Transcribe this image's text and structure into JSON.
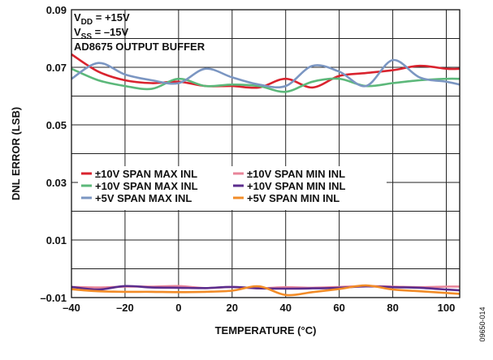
{
  "chart_data": {
    "type": "line",
    "xlabel": "TEMPERATURE (°C)",
    "ylabel": "DNL ERROR (LSB)",
    "xlim": [
      -40,
      105
    ],
    "ylim": [
      -0.01,
      0.09
    ],
    "x_ticks": [
      -40,
      -20,
      0,
      20,
      40,
      60,
      80,
      100
    ],
    "x_tick_labels": [
      "–40",
      "–20",
      "0",
      "20",
      "40",
      "60",
      "80",
      "100"
    ],
    "y_ticks": [
      -0.01,
      0.01,
      0.03,
      0.05,
      0.07,
      0.09
    ],
    "y_tick_labels": [
      "–0.01",
      "0.01",
      "0.03",
      "0.05",
      "0.07",
      "0.09"
    ],
    "grid": true,
    "conditions": [
      {
        "main": "V",
        "sub": "DD",
        "rest": " = +15V"
      },
      {
        "main": "V",
        "sub": "SS",
        "rest": " = –15V"
      },
      {
        "main": "AD8675 OUTPUT BUFFER",
        "sub": "",
        "rest": ""
      }
    ],
    "figure_id": "09650-014",
    "x": [
      -40,
      -30,
      -20,
      -10,
      0,
      10,
      20,
      30,
      40,
      50,
      60,
      70,
      80,
      90,
      100,
      105
    ],
    "series": [
      {
        "name": "±10V SPAN MAX INL",
        "color": "#d9232e",
        "values": [
          0.0745,
          0.0685,
          0.0655,
          0.0645,
          0.065,
          0.0635,
          0.0635,
          0.063,
          0.066,
          0.063,
          0.067,
          0.068,
          0.069,
          0.0705,
          0.0695,
          0.0695
        ]
      },
      {
        "name": "+10V SPAN MAX INL",
        "color": "#5cb87a",
        "values": [
          0.0695,
          0.0655,
          0.0635,
          0.0625,
          0.066,
          0.0635,
          0.064,
          0.0635,
          0.0615,
          0.065,
          0.066,
          0.0635,
          0.0645,
          0.0655,
          0.066,
          0.066
        ]
      },
      {
        "name": "+5V SPAN MAX INL",
        "color": "#7b96c2",
        "values": [
          0.066,
          0.0715,
          0.0675,
          0.0655,
          0.0645,
          0.0695,
          0.0665,
          0.064,
          0.0635,
          0.0705,
          0.0685,
          0.0635,
          0.0725,
          0.0665,
          0.065,
          0.064
        ]
      },
      {
        "name": "±10V SPAN MIN INL",
        "color": "#e8859a",
        "values": [
          -0.0063,
          -0.0065,
          -0.0062,
          -0.0062,
          -0.006,
          -0.0067,
          -0.0063,
          -0.0068,
          -0.0064,
          -0.0066,
          -0.0063,
          -0.006,
          -0.0062,
          -0.0064,
          -0.0062,
          -0.0062
        ]
      },
      {
        "name": "+10V SPAN MIN INL",
        "color": "#5b2d8e",
        "values": [
          -0.0063,
          -0.0072,
          -0.006,
          -0.0065,
          -0.0066,
          -0.0067,
          -0.0063,
          -0.0068,
          -0.0069,
          -0.0068,
          -0.0066,
          -0.0061,
          -0.0064,
          -0.0066,
          -0.0072,
          -0.0075
        ]
      },
      {
        "name": "+5V SPAN MIN INL",
        "color": "#f28c28",
        "values": [
          -0.0071,
          -0.0078,
          -0.008,
          -0.008,
          -0.0081,
          -0.008,
          -0.0076,
          -0.0061,
          -0.0091,
          -0.0081,
          -0.007,
          -0.0058,
          -0.0072,
          -0.0078,
          -0.0084,
          -0.0087
        ]
      }
    ],
    "legend": "center-left, 3 rows × 2 columns"
  }
}
